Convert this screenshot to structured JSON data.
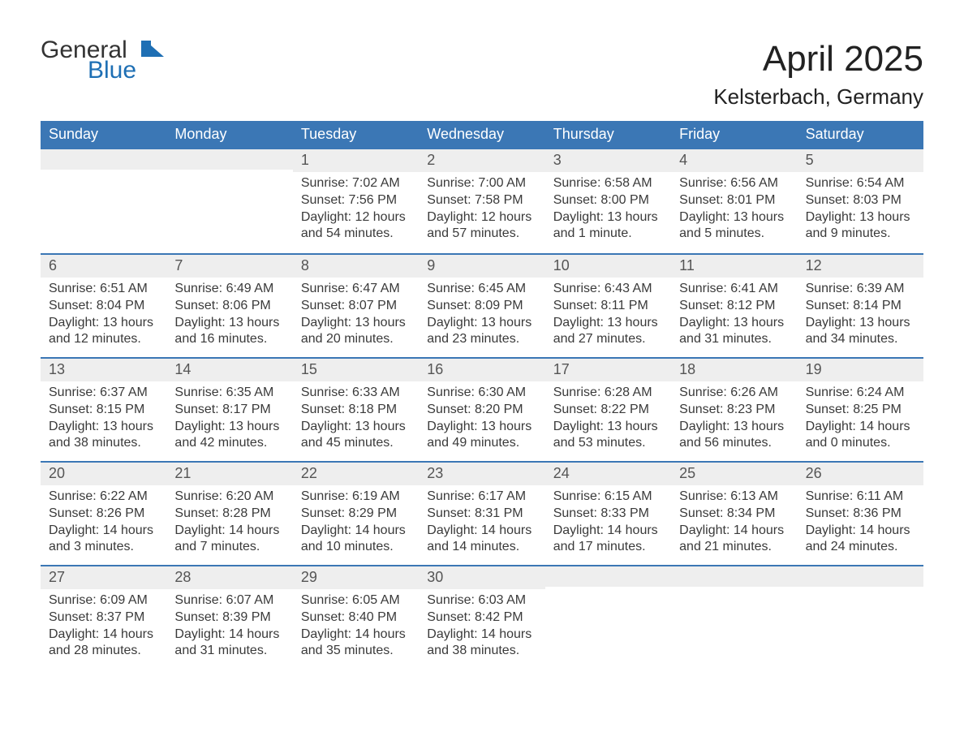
{
  "brand": {
    "line1": "General",
    "line2": "Blue",
    "shape_color": "#1e6fb4"
  },
  "title": "April 2025",
  "location": "Kelsterbach, Germany",
  "colors": {
    "header_bg": "#3b77b5",
    "daynum_bg": "#eeeeee",
    "row_sep": "#3b77b5",
    "brand_blue": "#1e6fb4",
    "background": "#ffffff"
  },
  "dow": [
    "Sunday",
    "Monday",
    "Tuesday",
    "Wednesday",
    "Thursday",
    "Friday",
    "Saturday"
  ],
  "weeks": [
    [
      {
        "day": "",
        "lines": []
      },
      {
        "day": "",
        "lines": []
      },
      {
        "day": "1",
        "lines": [
          "Sunrise: 7:02 AM",
          "Sunset: 7:56 PM",
          "Daylight: 12 hours and 54 minutes."
        ]
      },
      {
        "day": "2",
        "lines": [
          "Sunrise: 7:00 AM",
          "Sunset: 7:58 PM",
          "Daylight: 12 hours and 57 minutes."
        ]
      },
      {
        "day": "3",
        "lines": [
          "Sunrise: 6:58 AM",
          "Sunset: 8:00 PM",
          "Daylight: 13 hours and 1 minute."
        ]
      },
      {
        "day": "4",
        "lines": [
          "Sunrise: 6:56 AM",
          "Sunset: 8:01 PM",
          "Daylight: 13 hours and 5 minutes."
        ]
      },
      {
        "day": "5",
        "lines": [
          "Sunrise: 6:54 AM",
          "Sunset: 8:03 PM",
          "Daylight: 13 hours and 9 minutes."
        ]
      }
    ],
    [
      {
        "day": "6",
        "lines": [
          "Sunrise: 6:51 AM",
          "Sunset: 8:04 PM",
          "Daylight: 13 hours and 12 minutes."
        ]
      },
      {
        "day": "7",
        "lines": [
          "Sunrise: 6:49 AM",
          "Sunset: 8:06 PM",
          "Daylight: 13 hours and 16 minutes."
        ]
      },
      {
        "day": "8",
        "lines": [
          "Sunrise: 6:47 AM",
          "Sunset: 8:07 PM",
          "Daylight: 13 hours and 20 minutes."
        ]
      },
      {
        "day": "9",
        "lines": [
          "Sunrise: 6:45 AM",
          "Sunset: 8:09 PM",
          "Daylight: 13 hours and 23 minutes."
        ]
      },
      {
        "day": "10",
        "lines": [
          "Sunrise: 6:43 AM",
          "Sunset: 8:11 PM",
          "Daylight: 13 hours and 27 minutes."
        ]
      },
      {
        "day": "11",
        "lines": [
          "Sunrise: 6:41 AM",
          "Sunset: 8:12 PM",
          "Daylight: 13 hours and 31 minutes."
        ]
      },
      {
        "day": "12",
        "lines": [
          "Sunrise: 6:39 AM",
          "Sunset: 8:14 PM",
          "Daylight: 13 hours and 34 minutes."
        ]
      }
    ],
    [
      {
        "day": "13",
        "lines": [
          "Sunrise: 6:37 AM",
          "Sunset: 8:15 PM",
          "Daylight: 13 hours and 38 minutes."
        ]
      },
      {
        "day": "14",
        "lines": [
          "Sunrise: 6:35 AM",
          "Sunset: 8:17 PM",
          "Daylight: 13 hours and 42 minutes."
        ]
      },
      {
        "day": "15",
        "lines": [
          "Sunrise: 6:33 AM",
          "Sunset: 8:18 PM",
          "Daylight: 13 hours and 45 minutes."
        ]
      },
      {
        "day": "16",
        "lines": [
          "Sunrise: 6:30 AM",
          "Sunset: 8:20 PM",
          "Daylight: 13 hours and 49 minutes."
        ]
      },
      {
        "day": "17",
        "lines": [
          "Sunrise: 6:28 AM",
          "Sunset: 8:22 PM",
          "Daylight: 13 hours and 53 minutes."
        ]
      },
      {
        "day": "18",
        "lines": [
          "Sunrise: 6:26 AM",
          "Sunset: 8:23 PM",
          "Daylight: 13 hours and 56 minutes."
        ]
      },
      {
        "day": "19",
        "lines": [
          "Sunrise: 6:24 AM",
          "Sunset: 8:25 PM",
          "Daylight: 14 hours and 0 minutes."
        ]
      }
    ],
    [
      {
        "day": "20",
        "lines": [
          "Sunrise: 6:22 AM",
          "Sunset: 8:26 PM",
          "Daylight: 14 hours and 3 minutes."
        ]
      },
      {
        "day": "21",
        "lines": [
          "Sunrise: 6:20 AM",
          "Sunset: 8:28 PM",
          "Daylight: 14 hours and 7 minutes."
        ]
      },
      {
        "day": "22",
        "lines": [
          "Sunrise: 6:19 AM",
          "Sunset: 8:29 PM",
          "Daylight: 14 hours and 10 minutes."
        ]
      },
      {
        "day": "23",
        "lines": [
          "Sunrise: 6:17 AM",
          "Sunset: 8:31 PM",
          "Daylight: 14 hours and 14 minutes."
        ]
      },
      {
        "day": "24",
        "lines": [
          "Sunrise: 6:15 AM",
          "Sunset: 8:33 PM",
          "Daylight: 14 hours and 17 minutes."
        ]
      },
      {
        "day": "25",
        "lines": [
          "Sunrise: 6:13 AM",
          "Sunset: 8:34 PM",
          "Daylight: 14 hours and 21 minutes."
        ]
      },
      {
        "day": "26",
        "lines": [
          "Sunrise: 6:11 AM",
          "Sunset: 8:36 PM",
          "Daylight: 14 hours and 24 minutes."
        ]
      }
    ],
    [
      {
        "day": "27",
        "lines": [
          "Sunrise: 6:09 AM",
          "Sunset: 8:37 PM",
          "Daylight: 14 hours and 28 minutes."
        ]
      },
      {
        "day": "28",
        "lines": [
          "Sunrise: 6:07 AM",
          "Sunset: 8:39 PM",
          "Daylight: 14 hours and 31 minutes."
        ]
      },
      {
        "day": "29",
        "lines": [
          "Sunrise: 6:05 AM",
          "Sunset: 8:40 PM",
          "Daylight: 14 hours and 35 minutes."
        ]
      },
      {
        "day": "30",
        "lines": [
          "Sunrise: 6:03 AM",
          "Sunset: 8:42 PM",
          "Daylight: 14 hours and 38 minutes."
        ]
      },
      {
        "day": "",
        "lines": []
      },
      {
        "day": "",
        "lines": []
      },
      {
        "day": "",
        "lines": []
      }
    ]
  ]
}
